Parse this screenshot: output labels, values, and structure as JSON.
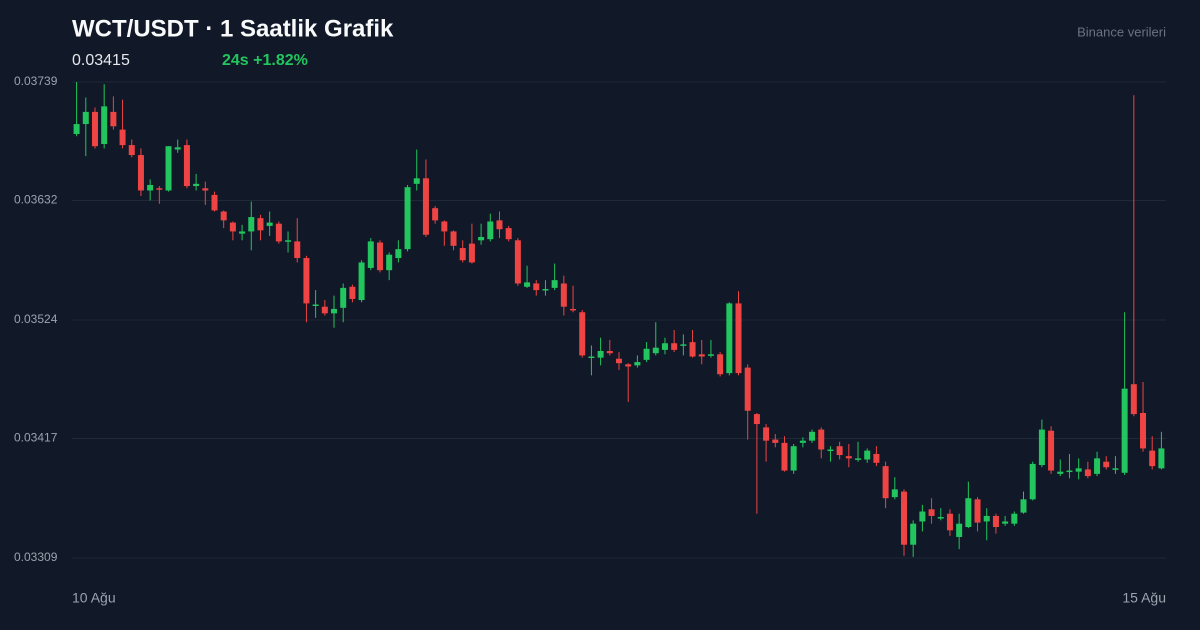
{
  "chart_data": {
    "type": "candlestick",
    "title": "WCT/USDT · 1 Saatlik Grafik",
    "price": "0.03415",
    "change": "24s +1.82%",
    "source": "Binance verileri",
    "up_color": "#22c55e",
    "down_color": "#ef4444",
    "ylim": [
      0.03309,
      0.03739
    ],
    "yticks": [
      0.03739,
      0.03632,
      0.03524,
      0.03417,
      0.03309
    ],
    "grid": true,
    "categories": [
      "10 Ağu",
      null,
      null,
      null,
      null,
      null,
      null,
      null,
      null,
      null,
      null,
      null,
      null,
      null,
      null,
      null,
      null,
      null,
      null,
      null,
      null,
      null,
      null,
      null,
      null,
      null,
      null,
      null,
      null,
      null,
      null,
      null,
      null,
      null,
      null,
      null,
      null,
      null,
      null,
      null,
      null,
      null,
      null,
      null,
      null,
      null,
      null,
      null,
      null,
      null,
      null,
      null,
      null,
      null,
      null,
      null,
      null,
      null,
      null,
      null,
      null,
      null,
      null,
      null,
      null,
      null,
      null,
      null,
      null,
      null,
      null,
      null,
      null,
      null,
      null,
      null,
      null,
      null,
      null,
      null,
      null,
      null,
      null,
      null,
      null,
      null,
      null,
      null,
      null,
      null,
      null,
      null,
      null,
      null,
      null,
      null,
      null,
      null,
      null,
      null,
      null,
      null,
      null,
      null,
      null,
      null,
      null,
      null,
      null,
      null,
      null,
      null,
      null,
      null,
      null,
      null,
      null,
      null,
      "15 Ağu"
    ],
    "open": [
      0.03692,
      0.03701,
      0.03712,
      0.03683,
      0.03712,
      0.03696,
      0.03682,
      0.03673,
      0.03641,
      0.03643,
      0.03641,
      0.03678,
      0.03682,
      0.03645,
      0.03643,
      0.03637,
      0.03622,
      0.03612,
      0.03602,
      0.03604,
      0.03616,
      0.03609,
      0.03611,
      0.03595,
      0.03595,
      0.0358,
      0.03537,
      0.03536,
      0.0353,
      0.03535,
      0.03554,
      0.03542,
      0.03571,
      0.03594,
      0.03569,
      0.0358,
      0.03588,
      0.03647,
      0.03652,
      0.03625,
      0.03613,
      0.03604,
      0.03589,
      0.03593,
      0.03596,
      0.03597,
      0.03614,
      0.03607,
      0.03596,
      0.03554,
      0.03557,
      0.03551,
      0.03553,
      0.03557,
      0.03534,
      0.03531,
      0.0349,
      0.0349,
      0.03496,
      0.03489,
      0.03484,
      0.03483,
      0.03488,
      0.03494,
      0.03497,
      0.03503,
      0.03501,
      0.03504,
      0.03493,
      0.03492,
      0.03493,
      0.03476,
      0.03539,
      0.03481,
      0.03439,
      0.03427,
      0.03416,
      0.03413,
      0.03388,
      0.03413,
      0.03415,
      0.03425,
      0.03406,
      0.0341,
      0.03401,
      0.03398,
      0.03398,
      0.03403,
      0.03392,
      0.03364,
      0.03369,
      0.03321,
      0.03342,
      0.03353,
      0.03345,
      0.03349,
      0.03328,
      0.03337,
      0.03362,
      0.03342,
      0.03347,
      0.0334,
      0.0334,
      0.0335,
      0.03362,
      0.03393,
      0.03424,
      0.03385,
      0.03387,
      0.03387,
      0.03389,
      0.03385,
      0.03396,
      0.03389,
      0.03386,
      0.03466,
      0.0344,
      0.03406,
      0.0339
    ],
    "high": [
      0.03739,
      0.03725,
      0.03716,
      0.03737,
      0.03726,
      0.03723,
      0.03687,
      0.03679,
      0.03651,
      0.03645,
      0.03681,
      0.03687,
      0.03687,
      0.03656,
      0.03649,
      0.0364,
      0.03623,
      0.03613,
      0.0361,
      0.03631,
      0.03619,
      0.03622,
      0.03613,
      0.03604,
      0.03616,
      0.03582,
      0.03551,
      0.03542,
      0.03546,
      0.03557,
      0.03556,
      0.03578,
      0.03598,
      0.03596,
      0.03585,
      0.03596,
      0.03646,
      0.03678,
      0.03669,
      0.03627,
      0.03614,
      0.03605,
      0.03596,
      0.03611,
      0.03611,
      0.0362,
      0.03622,
      0.03609,
      0.03598,
      0.03573,
      0.0356,
      0.0356,
      0.03575,
      0.03564,
      0.03555,
      0.03533,
      0.03501,
      0.03508,
      0.03506,
      0.03495,
      0.03485,
      0.03492,
      0.03504,
      0.03522,
      0.03508,
      0.03515,
      0.03511,
      0.03515,
      0.03506,
      0.03506,
      0.03495,
      0.0354,
      0.0355,
      0.03484,
      0.0344,
      0.0343,
      0.03421,
      0.03419,
      0.03412,
      0.03418,
      0.03425,
      0.03427,
      0.0341,
      0.03414,
      0.03412,
      0.03414,
      0.03408,
      0.0341,
      0.03396,
      0.03382,
      0.03371,
      0.03343,
      0.03357,
      0.03363,
      0.03354,
      0.03353,
      0.03349,
      0.03378,
      0.03364,
      0.03354,
      0.03349,
      0.03347,
      0.03351,
      0.03369,
      0.03396,
      0.03434,
      0.03428,
      0.03398,
      0.03403,
      0.03399,
      0.03396,
      0.03405,
      0.03401,
      0.03401,
      0.03531,
      0.03727,
      0.03468,
      0.03419,
      0.03423
    ],
    "low": [
      0.0369,
      0.03672,
      0.03679,
      0.03679,
      0.03696,
      0.03679,
      0.03671,
      0.03636,
      0.03632,
      0.03629,
      0.0364,
      0.03675,
      0.03643,
      0.03641,
      0.03628,
      0.03622,
      0.03607,
      0.03596,
      0.03596,
      0.03587,
      0.03596,
      0.036,
      0.03593,
      0.03585,
      0.03576,
      0.03522,
      0.03526,
      0.03528,
      0.03517,
      0.03522,
      0.0354,
      0.0354,
      0.03569,
      0.03567,
      0.0356,
      0.03576,
      0.03586,
      0.03641,
      0.03599,
      0.03611,
      0.03591,
      0.03587,
      0.03576,
      0.03575,
      0.03592,
      0.03595,
      0.03598,
      0.03595,
      0.03555,
      0.03553,
      0.03546,
      0.03546,
      0.03551,
      0.03528,
      0.03531,
      0.0349,
      0.03474,
      0.03483,
      0.03492,
      0.03479,
      0.0345,
      0.03481,
      0.03486,
      0.03492,
      0.03493,
      0.03495,
      0.03492,
      0.0349,
      0.03484,
      0.0349,
      0.03473,
      0.03474,
      0.03474,
      0.03416,
      0.03349,
      0.03396,
      0.03409,
      0.03387,
      0.03385,
      0.03409,
      0.03413,
      0.03399,
      0.03396,
      0.03398,
      0.03391,
      0.03396,
      0.03395,
      0.03392,
      0.03354,
      0.03362,
      0.03311,
      0.0331,
      0.03333,
      0.0334,
      0.03343,
      0.03329,
      0.03317,
      0.03336,
      0.03333,
      0.03325,
      0.03331,
      0.03338,
      0.03338,
      0.03349,
      0.03361,
      0.03391,
      0.03385,
      0.03383,
      0.03381,
      0.0338,
      0.03381,
      0.03383,
      0.03389,
      0.03385,
      0.03384,
      0.03437,
      0.03405,
      0.03389,
      0.03389
    ],
    "close": [
      0.03701,
      0.03712,
      0.03681,
      0.03717,
      0.03699,
      0.03682,
      0.03673,
      0.03641,
      0.03646,
      0.03642,
      0.03681,
      0.0368,
      0.03645,
      0.03647,
      0.03641,
      0.03623,
      0.03614,
      0.03604,
      0.03604,
      0.03617,
      0.03605,
      0.03612,
      0.03595,
      0.03596,
      0.0358,
      0.03539,
      0.03538,
      0.0353,
      0.03534,
      0.03553,
      0.03543,
      0.03576,
      0.03595,
      0.03569,
      0.03583,
      0.03588,
      0.03644,
      0.03652,
      0.03601,
      0.03614,
      0.03604,
      0.03591,
      0.03578,
      0.03576,
      0.03599,
      0.03613,
      0.03606,
      0.03597,
      0.03557,
      0.03558,
      0.03551,
      0.03552,
      0.0356,
      0.03536,
      0.03533,
      0.03492,
      0.03491,
      0.03496,
      0.03494,
      0.03485,
      0.03482,
      0.03486,
      0.03498,
      0.03499,
      0.03503,
      0.03497,
      0.03502,
      0.03491,
      0.03491,
      0.03493,
      0.03475,
      0.03539,
      0.03476,
      0.03442,
      0.0343,
      0.03415,
      0.03413,
      0.03388,
      0.0341,
      0.03415,
      0.03423,
      0.03407,
      0.03407,
      0.03402,
      0.03399,
      0.03399,
      0.03406,
      0.03395,
      0.03363,
      0.03371,
      0.03321,
      0.0334,
      0.03351,
      0.03347,
      0.03346,
      0.03334,
      0.0334,
      0.03363,
      0.03341,
      0.03347,
      0.03337,
      0.03342,
      0.03349,
      0.03362,
      0.03394,
      0.03425,
      0.03388,
      0.03387,
      0.03388,
      0.0339,
      0.03383,
      0.03399,
      0.03391,
      0.0339,
      0.03462,
      0.03439,
      0.03408,
      0.03392,
      0.03408
    ]
  }
}
